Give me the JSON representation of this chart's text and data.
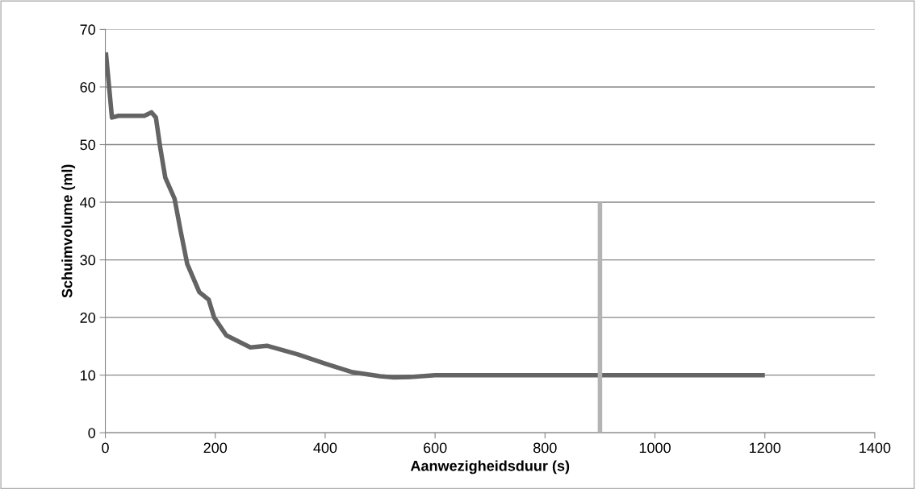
{
  "chart_data": {
    "type": "line",
    "xlabel": "Aanwezigheidsduur (s)",
    "ylabel": "Schuimvolume (ml)",
    "xlim": [
      0,
      1400
    ],
    "xticks": [
      0,
      200,
      400,
      600,
      800,
      1000,
      1200,
      1400
    ],
    "ylim": [
      0,
      70
    ],
    "yticks": [
      0,
      10,
      20,
      30,
      40,
      50,
      60,
      70
    ],
    "grid": "y",
    "marker": "none",
    "line_style": "solid",
    "series": [
      {
        "color": "#646464",
        "x": [
          1,
          12,
          24,
          71,
          84,
          92,
          100,
          109,
          126,
          137,
          149,
          171,
          188,
          198,
          220,
          264,
          294,
          350,
          400,
          450,
          500,
          525,
          560,
          600,
          800,
          1000,
          1200
        ],
        "values": [
          66,
          54.7,
          55,
          55,
          55.6,
          54.7,
          49.4,
          44.3,
          40.6,
          35,
          29.3,
          24.4,
          23.1,
          20,
          16.9,
          14.8,
          15.1,
          13.6,
          12,
          10.5,
          9.8,
          9.6,
          9.7,
          10,
          10,
          10,
          10
        ]
      },
      {
        "color": "#b4b4b4",
        "x": [
          900,
          900
        ],
        "values": [
          0,
          40
        ]
      }
    ]
  }
}
